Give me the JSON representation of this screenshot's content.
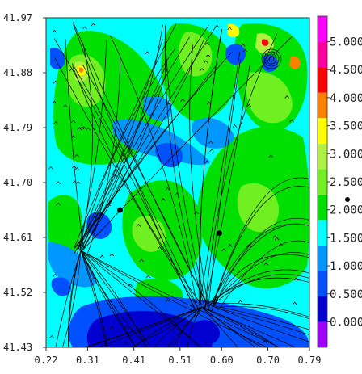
{
  "chart_data": {
    "type": "heatmap",
    "title": "",
    "xlabel": "",
    "ylabel": "",
    "xlim": [
      0.22,
      0.79
    ],
    "ylim": [
      41.43,
      41.97
    ],
    "x_ticks": [
      "0.22",
      "0.31",
      "0.41",
      "0.51",
      "0.60",
      "0.70",
      "0.79"
    ],
    "y_ticks": [
      "41.97",
      "41.88",
      "41.79",
      "41.70",
      "41.61",
      "41.52",
      "41.43"
    ],
    "colorbar": {
      "levels": [
        0.0,
        0.5,
        1.0,
        1.5,
        2.0,
        2.5,
        3.0,
        3.5,
        4.0,
        4.5,
        5.0
      ],
      "labels": [
        "0.000",
        "0.500",
        "1.000",
        "1.500",
        "2.000",
        "2.500",
        "3.000",
        "3.500",
        "4.000",
        "4.500",
        "5.000"
      ],
      "colors": [
        "#a000ff",
        "#0000d0",
        "#0050ff",
        "#0096ff",
        "#00ffff",
        "#00e000",
        "#70f020",
        "#b0f040",
        "#ffff00",
        "#ff7f00",
        "#ff0000",
        "#ff00a0",
        "#ff00ff"
      ]
    },
    "markers": [
      {
        "x": 0.38,
        "y": 41.655
      },
      {
        "x": 0.595,
        "y": 41.617
      }
    ],
    "overlay": "streamlines (wind vectors)",
    "grid": false
  }
}
